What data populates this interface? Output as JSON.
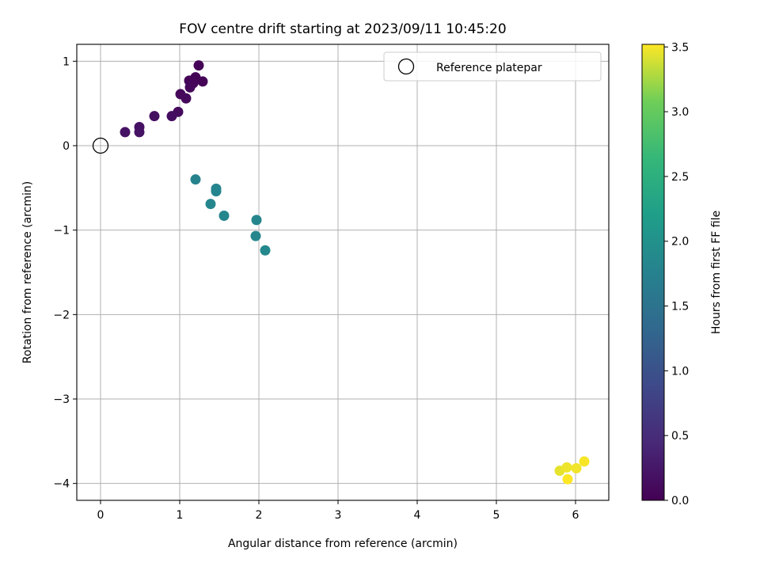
{
  "chart_data": {
    "type": "scatter",
    "title": "FOV centre drift starting at 2023/09/11 10:45:20",
    "xlabel": "Angular distance from reference (arcmin)",
    "ylabel": "Rotation from reference (arcmin)",
    "xlim": [
      -0.3,
      6.42
    ],
    "ylim": [
      -4.2,
      1.2
    ],
    "xticks": [
      0,
      1,
      2,
      3,
      4,
      5,
      6
    ],
    "xtick_labels": [
      "0",
      "1",
      "2",
      "3",
      "4",
      "5",
      "6"
    ],
    "yticks": [
      -4,
      -3,
      -2,
      -1,
      0,
      1
    ],
    "ytick_labels": [
      "−4",
      "−3",
      "−2",
      "−1",
      "0",
      "1"
    ],
    "grid": true,
    "legend": {
      "placement": "top-right",
      "label": "Reference platepar"
    },
    "reference_point": {
      "x": 0,
      "y": 0
    },
    "colorbar": {
      "label": "Hours from first FF file",
      "range": [
        0.0,
        3.52
      ],
      "colormap": "viridis",
      "ticks": [
        0.0,
        0.5,
        1.0,
        1.5,
        2.0,
        2.5,
        3.0,
        3.5
      ],
      "tick_labels": [
        "0.0",
        "0.5",
        "1.0",
        "1.5",
        "2.0",
        "2.5",
        "3.0",
        "3.5"
      ]
    },
    "points": [
      {
        "x": 1.24,
        "y": 0.95,
        "c": 0.02
      },
      {
        "x": 1.2,
        "y": 0.81,
        "c": 0.03
      },
      {
        "x": 1.29,
        "y": 0.76,
        "c": 0.04
      },
      {
        "x": 1.12,
        "y": 0.77,
        "c": 0.05
      },
      {
        "x": 1.17,
        "y": 0.74,
        "c": 0.06
      },
      {
        "x": 1.13,
        "y": 0.69,
        "c": 0.07
      },
      {
        "x": 1.01,
        "y": 0.61,
        "c": 0.08
      },
      {
        "x": 1.08,
        "y": 0.56,
        "c": 0.09
      },
      {
        "x": 0.98,
        "y": 0.4,
        "c": 0.12
      },
      {
        "x": 0.9,
        "y": 0.35,
        "c": 0.14
      },
      {
        "x": 0.68,
        "y": 0.35,
        "c": 0.16
      },
      {
        "x": 0.49,
        "y": 0.22,
        "c": 0.18
      },
      {
        "x": 0.49,
        "y": 0.16,
        "c": 0.19
      },
      {
        "x": 0.31,
        "y": 0.16,
        "c": 0.2
      },
      {
        "x": 1.2,
        "y": -0.4,
        "c": 1.78
      },
      {
        "x": 1.46,
        "y": -0.51,
        "c": 1.8
      },
      {
        "x": 1.46,
        "y": -0.54,
        "c": 1.8
      },
      {
        "x": 1.39,
        "y": -0.69,
        "c": 1.82
      },
      {
        "x": 1.56,
        "y": -0.83,
        "c": 1.82
      },
      {
        "x": 1.97,
        "y": -0.88,
        "c": 1.84
      },
      {
        "x": 1.96,
        "y": -1.07,
        "c": 1.84
      },
      {
        "x": 2.08,
        "y": -1.24,
        "c": 1.86
      },
      {
        "x": 5.8,
        "y": -3.85,
        "c": 3.45
      },
      {
        "x": 5.89,
        "y": -3.81,
        "c": 3.47
      },
      {
        "x": 6.01,
        "y": -3.82,
        "c": 3.48
      },
      {
        "x": 6.11,
        "y": -3.74,
        "c": 3.5
      },
      {
        "x": 5.9,
        "y": -3.95,
        "c": 3.52
      }
    ]
  }
}
